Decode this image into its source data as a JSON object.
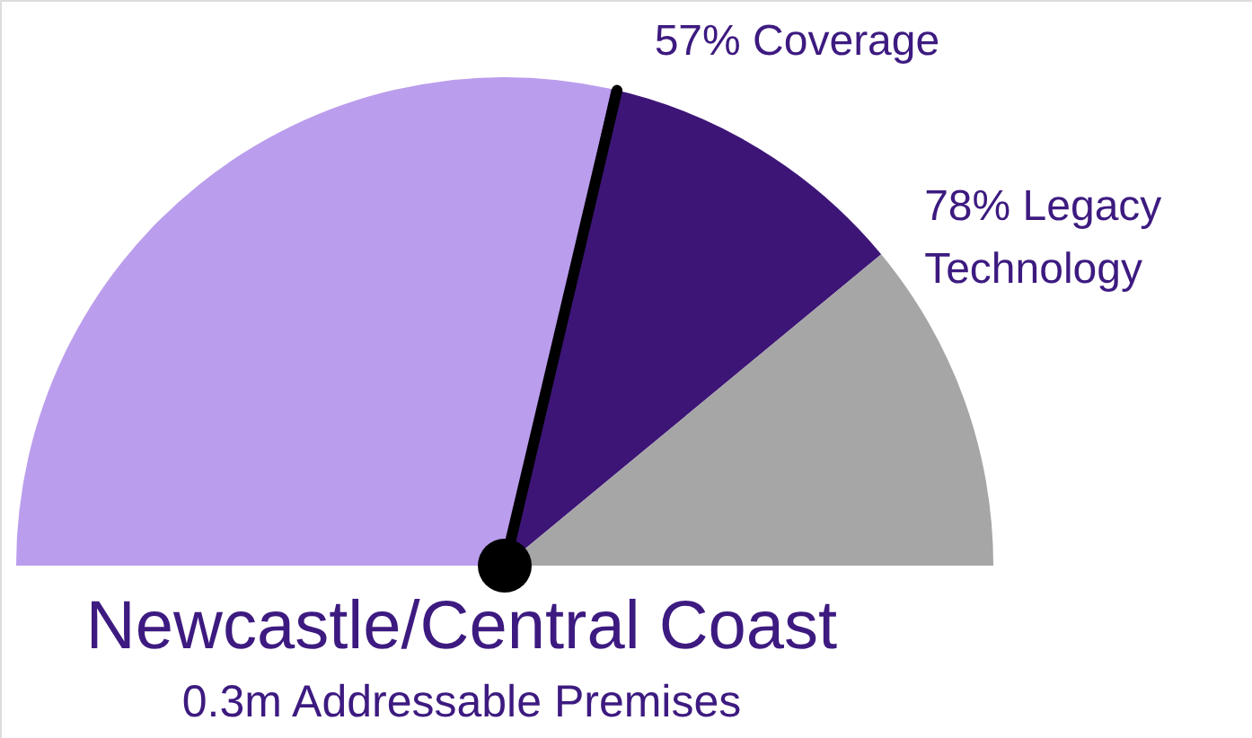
{
  "chart_data": {
    "type": "pie",
    "title": "Newcastle/Central Coast",
    "subtitle": "0.3m Addressable Premises",
    "categories": [
      "57% Coverage",
      "78% Legacy Technology",
      null
    ],
    "values": [
      57,
      21,
      22
    ],
    "colors": [
      "#bb9ded",
      "#3d1577",
      "#a6a6a6"
    ],
    "needle": "78% Legacy Technology"
  }
}
